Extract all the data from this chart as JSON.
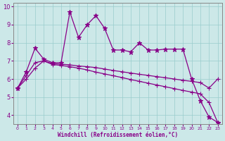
{
  "xlabel": "Windchill (Refroidissement éolien,°C)",
  "bg_color": "#cce8e8",
  "line_color": "#880088",
  "xlim": [
    -0.5,
    23.5
  ],
  "ylim": [
    3.5,
    10.2
  ],
  "yticks": [
    4,
    5,
    6,
    7,
    8,
    9,
    10
  ],
  "xticks": [
    0,
    1,
    2,
    3,
    4,
    5,
    6,
    7,
    8,
    9,
    10,
    11,
    12,
    13,
    14,
    15,
    16,
    17,
    18,
    19,
    20,
    21,
    22,
    23
  ],
  "series": [
    {
      "y": [
        5.5,
        6.4,
        7.7,
        7.1,
        6.9,
        6.9,
        9.7,
        8.3,
        9.0,
        9.5,
        8.8,
        7.6,
        7.6,
        7.5,
        8.0,
        7.6,
        7.6,
        7.65,
        7.65,
        7.65,
        6.0,
        4.8,
        3.9,
        3.6
      ],
      "marker": "*",
      "markersize": 5
    },
    {
      "y": [
        5.5,
        6.2,
        6.9,
        7.0,
        6.85,
        6.82,
        6.78,
        6.72,
        6.68,
        6.63,
        6.55,
        6.47,
        6.4,
        6.33,
        6.26,
        6.2,
        6.13,
        6.07,
        6.0,
        5.93,
        5.87,
        5.8,
        5.5,
        6.0
      ],
      "marker": "+",
      "markersize": 4
    },
    {
      "y": [
        5.5,
        6.0,
        6.6,
        7.0,
        6.8,
        6.75,
        6.68,
        6.6,
        6.5,
        6.38,
        6.28,
        6.18,
        6.08,
        5.97,
        5.87,
        5.77,
        5.67,
        5.57,
        5.47,
        5.37,
        5.28,
        5.18,
        4.7,
        3.6
      ],
      "marker": "+",
      "markersize": 4
    }
  ]
}
